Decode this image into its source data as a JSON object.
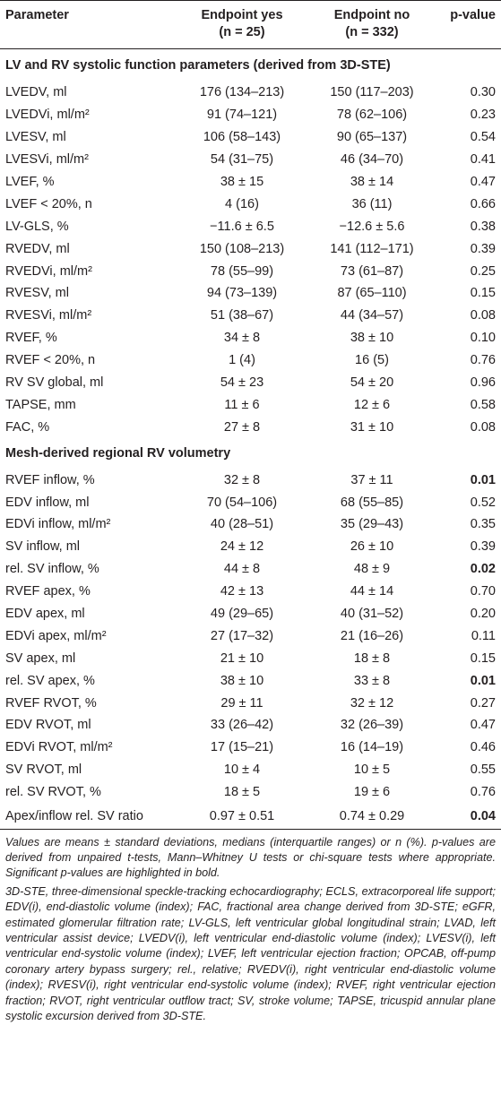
{
  "table": {
    "headers": {
      "parameter": "Parameter",
      "yes_line1": "Endpoint yes",
      "yes_line2": "(n = 25)",
      "no_line1": "Endpoint no",
      "no_line2": "(n = 332)",
      "pvalue": "p-value"
    },
    "sections": [
      {
        "title": "LV and RV systolic function parameters (derived from 3D-STE)",
        "rows": [
          {
            "param": "LVEDV, ml",
            "yes": "176 (134–213)",
            "no": "150 (117–203)",
            "p": "0.30",
            "sig": false
          },
          {
            "param": "LVEDVi, ml/m²",
            "yes": "91 (74–121)",
            "no": "78 (62–106)",
            "p": "0.23",
            "sig": false
          },
          {
            "param": "LVESV, ml",
            "yes": "106 (58–143)",
            "no": "90 (65–137)",
            "p": "0.54",
            "sig": false
          },
          {
            "param": "LVESVi, ml/m²",
            "yes": "54 (31–75)",
            "no": "46 (34–70)",
            "p": "0.41",
            "sig": false
          },
          {
            "param": "LVEF, %",
            "yes": "38 ± 15",
            "no": "38 ± 14",
            "p": "0.47",
            "sig": false
          },
          {
            "param": "LVEF < 20%, n",
            "yes": "4 (16)",
            "no": "36 (11)",
            "p": "0.66",
            "sig": false
          },
          {
            "param": "LV-GLS, %",
            "yes": "−11.6 ± 6.5",
            "no": "−12.6 ± 5.6",
            "p": "0.38",
            "sig": false
          },
          {
            "param": "RVEDV, ml",
            "yes": "150 (108–213)",
            "no": "141 (112–171)",
            "p": "0.39",
            "sig": false
          },
          {
            "param": "RVEDVi, ml/m²",
            "yes": "78 (55–99)",
            "no": "73 (61–87)",
            "p": "0.25",
            "sig": false
          },
          {
            "param": "RVESV, ml",
            "yes": "94 (73–139)",
            "no": "87 (65–110)",
            "p": "0.15",
            "sig": false
          },
          {
            "param": "RVESVi, ml/m²",
            "yes": "51 (38–67)",
            "no": "44 (34–57)",
            "p": "0.08",
            "sig": false
          },
          {
            "param": "RVEF, %",
            "yes": "34 ± 8",
            "no": "38 ± 10",
            "p": "0.10",
            "sig": false
          },
          {
            "param": "RVEF < 20%, n",
            "yes": "1 (4)",
            "no": "16 (5)",
            "p": "0.76",
            "sig": false
          },
          {
            "param": "RV SV global, ml",
            "yes": "54 ± 23",
            "no": "54 ± 20",
            "p": "0.96",
            "sig": false
          },
          {
            "param": "TAPSE, mm",
            "yes": "11 ± 6",
            "no": "12 ± 6",
            "p": "0.58",
            "sig": false
          },
          {
            "param": "FAC, %",
            "yes": "27 ± 8",
            "no": "31 ± 10",
            "p": "0.08",
            "sig": false
          }
        ]
      },
      {
        "title": "Mesh-derived regional RV volumetry",
        "rows": [
          {
            "param": "RVEF inflow, %",
            "yes": "32 ± 8",
            "no": "37 ± 11",
            "p": "0.01",
            "sig": true
          },
          {
            "param": "EDV inflow, ml",
            "yes": "70 (54–106)",
            "no": "68 (55–85)",
            "p": "0.52",
            "sig": false
          },
          {
            "param": "EDVi inflow, ml/m²",
            "yes": "40 (28–51)",
            "no": "35 (29–43)",
            "p": "0.35",
            "sig": false
          },
          {
            "param": "SV inflow, ml",
            "yes": "24 ± 12",
            "no": "26 ± 10",
            "p": "0.39",
            "sig": false
          },
          {
            "param": "rel. SV inflow, %",
            "yes": "44 ± 8",
            "no": "48 ± 9",
            "p": "0.02",
            "sig": true
          },
          {
            "param": "RVEF apex, %",
            "yes": "42 ± 13",
            "no": "44 ± 14",
            "p": "0.70",
            "sig": false
          },
          {
            "param": "EDV apex, ml",
            "yes": "49 (29–65)",
            "no": "40 (31–52)",
            "p": "0.20",
            "sig": false
          },
          {
            "param": "EDVi apex, ml/m²",
            "yes": "27 (17–32)",
            "no": "21 (16–26)",
            "p": "0.11",
            "sig": false
          },
          {
            "param": "SV apex, ml",
            "yes": "21 ± 10",
            "no": "18 ± 8",
            "p": "0.15",
            "sig": false
          },
          {
            "param": "rel. SV apex, %",
            "yes": "38 ± 10",
            "no": "33 ± 8",
            "p": "0.01",
            "sig": true
          },
          {
            "param": "RVEF RVOT, %",
            "yes": "29 ± 11",
            "no": "32 ± 12",
            "p": "0.27",
            "sig": false
          },
          {
            "param": "EDV RVOT, ml",
            "yes": "33 (26–42)",
            "no": "32 (26–39)",
            "p": "0.47",
            "sig": false
          },
          {
            "param": "EDVi RVOT, ml/m²",
            "yes": "17 (15–21)",
            "no": "16 (14–19)",
            "p": "0.46",
            "sig": false
          },
          {
            "param": "SV RVOT, ml",
            "yes": "10 ± 4",
            "no": "10 ± 5",
            "p": "0.55",
            "sig": false
          },
          {
            "param": "rel. SV RVOT, %",
            "yes": "18 ± 5",
            "no": "19 ± 6",
            "p": "0.76",
            "sig": false
          },
          {
            "param": "Apex/inflow rel. SV ratio",
            "yes": "0.97 ± 0.51",
            "no": "0.74 ± 0.29",
            "p": "0.04",
            "sig": true
          }
        ]
      }
    ]
  },
  "footnotes": [
    "Values are means ± standard deviations, medians (interquartile ranges) or n (%). p-values are derived from unpaired t-tests, Mann–Whitney U tests or chi-square tests where appropriate. Significant p-values are highlighted in bold.",
    "3D-STE, three-dimensional speckle-tracking echocardiography; ECLS, extracorporeal life support; EDV(i), end-diastolic volume (index); FAC, fractional area change derived from 3D-STE; eGFR, estimated glomerular filtration rate; LV-GLS, left ventricular global longitudinal strain; LVAD, left ventricular assist device; LVEDV(i), left ventricular end-diastolic volume (index); LVESV(i), left ventricular end-systolic volume (index); LVEF, left ventricular ejection fraction; OPCAB, off-pump coronary artery bypass surgery; rel., relative; RVEDV(i), right ventricular end-diastolic volume (index); RVESV(i), right ventricular end-systolic volume (index); RVEF, right ventricular ejection fraction; RVOT, right ventricular outflow tract; SV, stroke volume; TAPSE, tricuspid annular plane systolic excursion derived from 3D-STE."
  ]
}
